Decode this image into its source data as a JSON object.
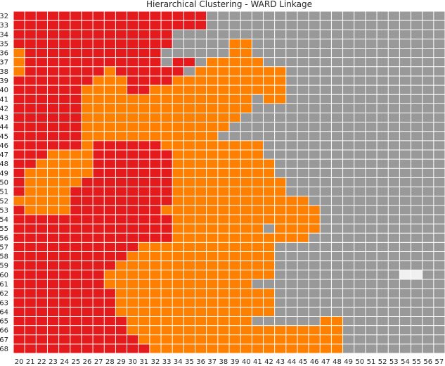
{
  "chart_data": {
    "type": "heatmap",
    "title": "Hierarchical Clustering - WARD Linkage",
    "xlabel": "",
    "ylabel": "",
    "x_range": [
      20,
      58
    ],
    "y_range": [
      32,
      62
    ],
    "grid": true,
    "legend": "none",
    "clusters": [
      {
        "id": 0,
        "color": "#e41a1c"
      },
      {
        "id": 1,
        "color": "#ff7f00"
      },
      {
        "id": 2,
        "color": "#999999"
      },
      {
        "id": 3,
        "color": "#f0f0f0"
      }
    ],
    "rows": [
      "00000000000000000222222222222222222222",
      "00000000000000000222222222222222222222",
      "00000000000000222222222222222222222222",
      "00000000000000222221122222222222222222",
      "10000000000002222221122222222222222222",
      "10000000000002002111112222222222222222",
      "10000000100000021111111122222222222222",
      "00000001110000111111111122222222222222",
      "00000011110011111111111122222222222222",
      "00000011111111111111121122222222222222",
      "00000011111111111111122222222222222222",
      "00000011111111111111222222222222222222",
      "00000011111111111112222222222222222222",
      "00000011111111111122222222222222222222",
      "00000010000001111111112222222222222222",
      "00011110000000111111112222222222222222",
      "00111110000000111111111222222222222222",
      "01111110000000111111111222222222222222",
      "01111100000000111111111122222222222222",
      "01111000000000111111111122222222222222",
      "11111000000000111111111111222222222222",
      "01111000000001111111111111122222222222",
      "00000000000000111111111111122222222222",
      "00000000000000111111112111122222222222",
      "00000000000000111111111111222222222222",
      "00000000000111111111111222222222222222",
      "00000000001111111111111222222222222222",
      "00000000011111111111111222222222222222",
      "00000000111111111111111222222222223322",
      "00000000111111111111122222222222222222",
      "00000000011111111111111222222222222222",
      "00000000011111111111111222222222222222",
      "00000000011111111111111222222222222222",
      "00000000001111111111122222211222222222",
      "00000000001111111111111111111222222222",
      "00000000000111111111111111111222222222",
      "00000000000011111111111111111222222222"
    ]
  }
}
